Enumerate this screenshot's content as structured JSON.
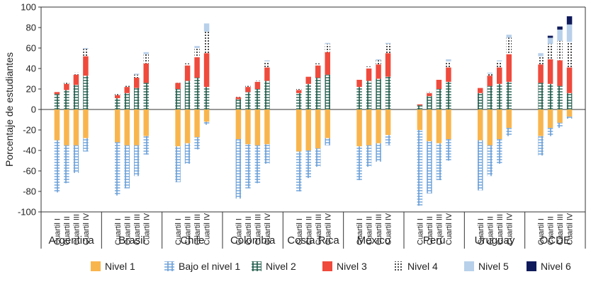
{
  "chart_data": {
    "type": "bar",
    "stacked": true,
    "ylabel": "Porcentaje de estudiantes",
    "ylim": [
      -100,
      100
    ],
    "yticks": [
      -100,
      -80,
      -60,
      -40,
      -20,
      0,
      20,
      40,
      60,
      80,
      100
    ],
    "grid": false,
    "legend_position": "bottom",
    "quartiles": [
      "Cuartil I",
      "Cuartil II",
      "Cuartil III",
      "Cuartil IV"
    ],
    "countries": [
      "Argentina",
      "Brasil",
      "Chile",
      "Colombia",
      "Costa Rica",
      "México",
      "Perú",
      "Uruguay",
      "OCDE"
    ],
    "levels": [
      {
        "key": "n1",
        "name": "Nivel 1",
        "color": "#f9b54d",
        "pattern": "solid"
      },
      {
        "key": "b1",
        "name": "Bajo el nivel 1",
        "color": "#6a9fd8",
        "pattern": "hatch-blue"
      },
      {
        "key": "n2",
        "name": "Nivel 2",
        "color": "#1f5a4a",
        "pattern": "hatch-green"
      },
      {
        "key": "n3",
        "name": "Nivel 3",
        "color": "#ef4a3c",
        "pattern": "solid"
      },
      {
        "key": "n4",
        "name": "Nivel 4",
        "color": "#111111",
        "pattern": "dots"
      },
      {
        "key": "n5",
        "name": "Nivel 5",
        "color": "#b8d0ea",
        "pattern": "solid"
      },
      {
        "key": "n6",
        "name": "Nivel 6",
        "color": "#0e1a5a",
        "pattern": "solid"
      }
    ],
    "data": {
      "Argentina": [
        {
          "n1": 30,
          "b1": 51,
          "n2": 15,
          "n3": 2,
          "n4": 0,
          "n5": 0,
          "n6": 0
        },
        {
          "n1": 35,
          "b1": 37,
          "n2": 19,
          "n3": 6,
          "n4": 1,
          "n5": 0,
          "n6": 0
        },
        {
          "n1": 35,
          "b1": 27,
          "n2": 24,
          "n3": 10,
          "n4": 2,
          "n5": 0,
          "n6": 0
        },
        {
          "n1": 28,
          "b1": 13,
          "n2": 33,
          "n3": 19,
          "n4": 7,
          "n5": 1,
          "n6": 0
        }
      ],
      "Brasil": [
        {
          "n1": 32,
          "b1": 52,
          "n2": 11,
          "n3": 3,
          "n4": 1,
          "n5": 0,
          "n6": 0
        },
        {
          "n1": 35,
          "b1": 42,
          "n2": 16,
          "n3": 6,
          "n4": 1,
          "n5": 0,
          "n6": 0
        },
        {
          "n1": 35,
          "b1": 30,
          "n2": 21,
          "n3": 10,
          "n4": 3,
          "n5": 1,
          "n6": 0
        },
        {
          "n1": 26,
          "b1": 18,
          "n2": 26,
          "n3": 19,
          "n4": 9,
          "n5": 2,
          "n6": 0
        }
      ],
      "Chile": [
        {
          "n1": 36,
          "b1": 35,
          "n2": 20,
          "n3": 6,
          "n4": 1,
          "n5": 0,
          "n6": 0
        },
        {
          "n1": 33,
          "b1": 20,
          "n2": 28,
          "n3": 15,
          "n4": 2,
          "n5": 0,
          "n6": 0
        },
        {
          "n1": 27,
          "b1": 12,
          "n2": 31,
          "n3": 20,
          "n4": 9,
          "n5": 2,
          "n6": 0
        },
        {
          "n1": 12,
          "b1": 3,
          "n2": 22,
          "n3": 33,
          "n4": 21,
          "n5": 8,
          "n6": 0
        }
      ],
      "Colombia": [
        {
          "n1": 29,
          "b1": 58,
          "n2": 10,
          "n3": 2,
          "n4": 1,
          "n5": 0,
          "n6": 0
        },
        {
          "n1": 34,
          "b1": 43,
          "n2": 17,
          "n3": 5,
          "n4": 1,
          "n5": 0,
          "n6": 0
        },
        {
          "n1": 35,
          "b1": 37,
          "n2": 20,
          "n3": 7,
          "n4": 1,
          "n5": 0,
          "n6": 0
        },
        {
          "n1": 34,
          "b1": 19,
          "n2": 28,
          "n3": 13,
          "n4": 6,
          "n5": 1,
          "n6": 0
        }
      ],
      "Costa Rica": [
        {
          "n1": 41,
          "b1": 39,
          "n2": 16,
          "n3": 3,
          "n4": 1,
          "n5": 0,
          "n6": 0
        },
        {
          "n1": 40,
          "b1": 27,
          "n2": 25,
          "n3": 7,
          "n4": 1,
          "n5": 0,
          "n6": 0
        },
        {
          "n1": 38,
          "b1": 18,
          "n2": 31,
          "n3": 12,
          "n4": 2,
          "n5": 0,
          "n6": 0
        },
        {
          "n1": 28,
          "b1": 7,
          "n2": 34,
          "n3": 22,
          "n4": 8,
          "n5": 1,
          "n6": 0
        }
      ],
      "México": [
        {
          "n1": 36,
          "b1": 33,
          "n2": 22,
          "n3": 7,
          "n4": 1,
          "n5": 0,
          "n6": 0
        },
        {
          "n1": 35,
          "b1": 21,
          "n2": 28,
          "n3": 12,
          "n4": 2,
          "n5": 0,
          "n6": 0
        },
        {
          "n1": 33,
          "b1": 18,
          "n2": 30,
          "n3": 14,
          "n4": 4,
          "n5": 1,
          "n6": 0
        },
        {
          "n1": 25,
          "b1": 10,
          "n2": 32,
          "n3": 23,
          "n4": 9,
          "n5": 1,
          "n6": 0
        }
      ],
      "Perú": [
        {
          "n1": 20,
          "b1": 74,
          "n2": 4,
          "n3": 1,
          "n4": 0,
          "n5": 0,
          "n6": 0
        },
        {
          "n1": 31,
          "b1": 51,
          "n2": 13,
          "n3": 3,
          "n4": 1,
          "n5": 0,
          "n6": 0
        },
        {
          "n1": 33,
          "b1": 36,
          "n2": 20,
          "n3": 9,
          "n4": 1,
          "n5": 0,
          "n6": 0
        },
        {
          "n1": 29,
          "b1": 21,
          "n2": 27,
          "n3": 14,
          "n4": 6,
          "n5": 2,
          "n6": 0
        }
      ],
      "Uruguay": [
        {
          "n1": 30,
          "b1": 49,
          "n2": 16,
          "n3": 5,
          "n4": 1,
          "n5": 0,
          "n6": 0
        },
        {
          "n1": 35,
          "b1": 30,
          "n2": 23,
          "n3": 10,
          "n4": 2,
          "n5": 1,
          "n6": 0
        },
        {
          "n1": 29,
          "b1": 24,
          "n2": 25,
          "n3": 16,
          "n4": 6,
          "n5": 1,
          "n6": 0
        },
        {
          "n1": 18,
          "b1": 8,
          "n2": 27,
          "n3": 27,
          "n4": 16,
          "n5": 3,
          "n6": 0
        }
      ],
      "OCDE": [
        {
          "n1": 26,
          "b1": 19,
          "n2": 26,
          "n3": 18,
          "n4": 8,
          "n5": 3,
          "n6": 0
        },
        {
          "n1": 18,
          "b1": 8,
          "n2": 25,
          "n3": 24,
          "n4": 15,
          "n5": 6,
          "n6": 2
        },
        {
          "n1": 13,
          "b1": 5,
          "n2": 23,
          "n3": 25,
          "n4": 19,
          "n5": 11,
          "n6": 3
        },
        {
          "n1": 7,
          "b1": 2,
          "n2": 16,
          "n3": 25,
          "n4": 25,
          "n5": 17,
          "n6": 8
        }
      ]
    }
  }
}
